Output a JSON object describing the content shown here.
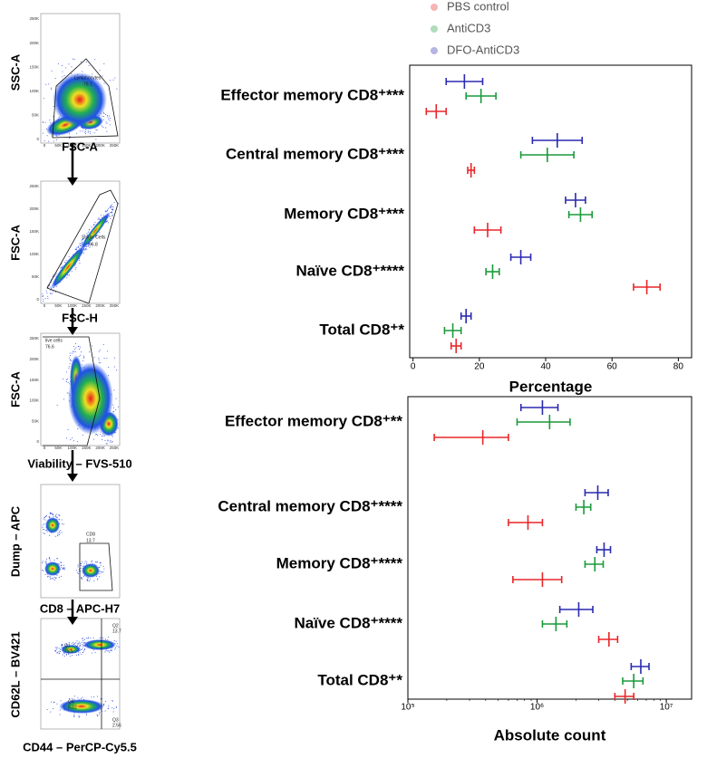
{
  "gating": [
    {
      "x_label": "FSC-A",
      "y_label": "SSC-A",
      "gate": [
        "Lymphocytes",
        "79.1"
      ],
      "ticks": [
        "0",
        "50K",
        "100K",
        "150K",
        "200K",
        "250K"
      ]
    },
    {
      "x_label": "FSC-H",
      "y_label": "FSC-A",
      "gate": [
        "Single Cells",
        "96.8"
      ],
      "ticks": [
        "0",
        "50K",
        "100K",
        "150K",
        "200K",
        "250K"
      ]
    },
    {
      "x_label": "Viability – FVS-510",
      "y_label": "FSC-A",
      "gate": [
        "live cells",
        "76.6"
      ],
      "ticks": [
        "0",
        "50K",
        "100K",
        "150K",
        "200K",
        "250K"
      ]
    },
    {
      "x_label": "CD8 – APC-H7",
      "y_label": "Dump – APC",
      "gate": [
        "CD8",
        "13.7"
      ]
    },
    {
      "x_label": "CD44 – PerCP-Cy5.5",
      "y_label": "CD62L – BV421",
      "gate": [
        "Q1",
        "79.5",
        "Q2",
        "13.7",
        "Q3",
        "2.56",
        "Q4",
        "5.22"
      ]
    }
  ],
  "chart_data": [
    {
      "type": "dot",
      "x_label": "Percentage",
      "categories": [
        "Effector memory CD8⁺***",
        "Central memory CD8⁺***",
        "Memory CD8⁺***",
        "Naïve CD8⁺****",
        "Total CD8⁺*"
      ],
      "series": [
        {
          "name": "PBS control",
          "color": "#e8262a",
          "values": [
            7,
            17.5,
            22.5,
            70.5,
            13
          ],
          "errors": [
            3,
            1,
            4,
            4,
            1.5
          ]
        },
        {
          "name": "AntiCD3",
          "color": "#1a9a3a",
          "values": [
            20.5,
            40.5,
            50.5,
            24,
            12
          ],
          "errors": [
            4.5,
            8,
            3.5,
            2,
            2.5
          ]
        },
        {
          "name": "DFO-AntiCD3",
          "color": "#2a2ab0",
          "values": [
            15.5,
            43.5,
            49,
            32.5,
            16
          ],
          "errors": [
            5.5,
            7.5,
            3,
            3,
            1.5
          ]
        }
      ],
      "xlim": [
        -1,
        84
      ],
      "xticks": [
        0,
        20,
        40,
        60,
        80
      ]
    },
    {
      "type": "dot",
      "x_label": "Absolute count",
      "log": true,
      "categories": [
        "Effector memory CD8⁺**",
        "Central memory CD8⁺****",
        "Memory CD8⁺****",
        "Naïve CD8⁺****",
        "Total CD8⁺*"
      ],
      "series": [
        {
          "color": "#e8262a",
          "values": [
            380000,
            850000,
            1100000,
            3600000,
            4800000
          ],
          "errors": [
            220000,
            250000,
            450000,
            600000,
            800000
          ]
        },
        {
          "color": "#1a9a3a",
          "values": [
            1250000,
            2300000,
            2800000,
            1400000,
            5600000
          ],
          "errors": [
            550000,
            300000,
            450000,
            300000,
            1000000
          ]
        },
        {
          "color": "#2a2ab0",
          "values": [
            1100000,
            2950000,
            3300000,
            2100000,
            6350000
          ],
          "errors": [
            350000,
            600000,
            400000,
            600000,
            1000000
          ]
        }
      ],
      "xlim": [
        100000,
        15700000
      ],
      "xticks": [
        {
          "value": 100000,
          "label": "10⁵"
        },
        {
          "value": 1000000,
          "label": "10⁶"
        },
        {
          "value": 10000000,
          "label": "10⁷"
        }
      ]
    }
  ]
}
